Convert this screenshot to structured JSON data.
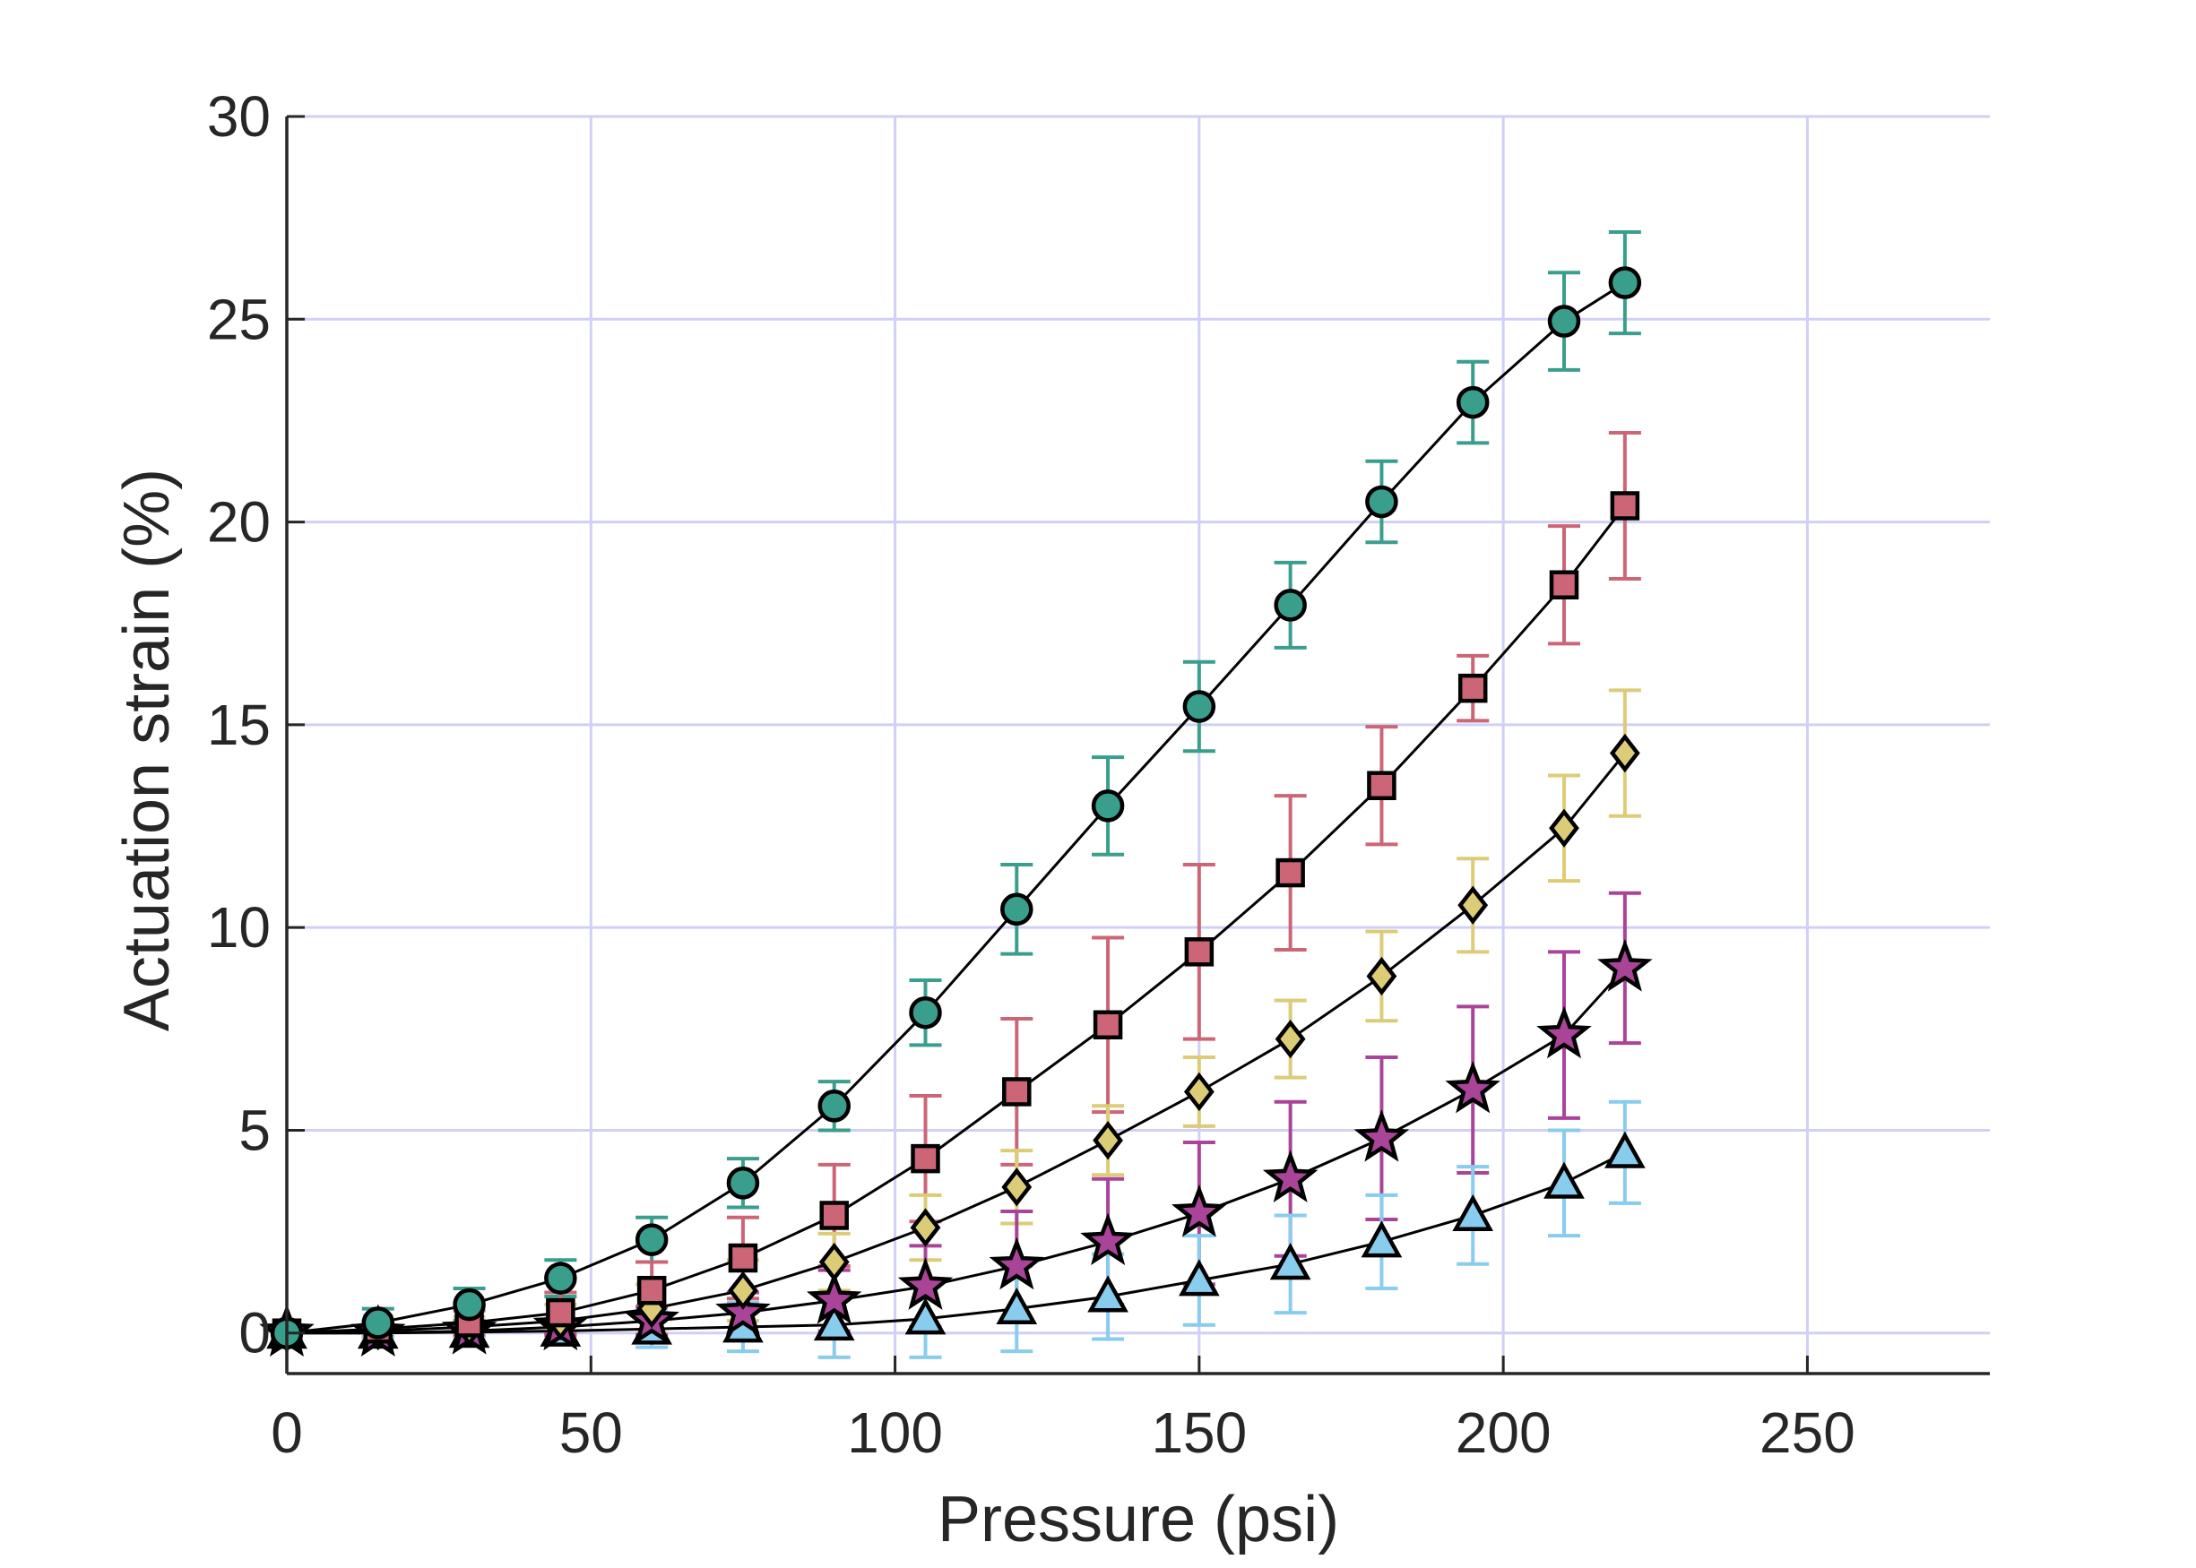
{
  "chart_data": {
    "type": "line",
    "xlabel": "Pressure (psi)",
    "ylabel": "Actuation strain (%)",
    "xlim": [
      0,
      280
    ],
    "ylim": [
      -1,
      30
    ],
    "xticks": [
      0,
      50,
      100,
      150,
      200,
      250
    ],
    "yticks": [
      0,
      5,
      10,
      15,
      20,
      25,
      30
    ],
    "grid": true,
    "grid_color": "#d0d0f5",
    "line_color": "#000000",
    "series": [
      {
        "marker": "circle",
        "color": "#3a9e8c",
        "x": [
          0,
          15,
          30,
          45,
          60,
          75,
          90,
          105,
          120,
          135,
          150,
          165,
          180,
          195,
          210,
          220
        ],
        "y": [
          0,
          0.25,
          0.7,
          1.35,
          2.3,
          3.7,
          5.6,
          7.9,
          10.45,
          13.0,
          15.45,
          17.95,
          20.5,
          22.95,
          24.95,
          25.9
        ],
        "err": [
          0.15,
          0.35,
          0.4,
          0.45,
          0.55,
          0.6,
          0.6,
          0.8,
          1.1,
          1.2,
          1.1,
          1.05,
          1.0,
          1.0,
          1.2,
          1.25
        ]
      },
      {
        "marker": "square",
        "color": "#cc6677",
        "x": [
          0,
          15,
          30,
          45,
          60,
          75,
          90,
          105,
          120,
          135,
          150,
          165,
          180,
          195,
          210,
          220
        ],
        "y": [
          0,
          0.1,
          0.25,
          0.5,
          1.05,
          1.85,
          2.9,
          4.3,
          5.95,
          7.6,
          9.4,
          11.35,
          13.5,
          15.9,
          18.45,
          20.4
        ],
        "err": [
          0.1,
          0.2,
          0.3,
          0.5,
          0.7,
          1.0,
          1.25,
          1.55,
          1.8,
          2.15,
          2.15,
          1.9,
          1.45,
          0.8,
          1.45,
          1.8
        ]
      },
      {
        "marker": "diamond",
        "color": "#ddcc77",
        "x": [
          0,
          15,
          30,
          45,
          60,
          75,
          90,
          105,
          120,
          135,
          150,
          165,
          180,
          195,
          210,
          220
        ],
        "y": [
          0,
          0.05,
          0.15,
          0.3,
          0.6,
          1.05,
          1.75,
          2.6,
          3.6,
          4.75,
          5.95,
          7.25,
          8.8,
          10.55,
          12.45,
          14.3
        ],
        "err": [
          0.1,
          0.15,
          0.25,
          0.4,
          0.6,
          0.75,
          0.7,
          0.8,
          0.9,
          0.85,
          0.85,
          0.95,
          1.1,
          1.15,
          1.3,
          1.55
        ]
      },
      {
        "marker": "star",
        "color": "#aa4499",
        "x": [
          0,
          15,
          30,
          45,
          60,
          75,
          90,
          105,
          120,
          135,
          150,
          165,
          180,
          195,
          210,
          220
        ],
        "y": [
          0,
          0.0,
          0.05,
          0.15,
          0.3,
          0.5,
          0.8,
          1.15,
          1.65,
          2.25,
          2.95,
          3.8,
          4.8,
          6.0,
          7.35,
          9.0
        ],
        "err": [
          0.1,
          0.1,
          0.15,
          0.2,
          0.35,
          0.5,
          0.75,
          1.0,
          1.35,
          1.55,
          1.75,
          1.9,
          2.0,
          2.05,
          2.05,
          1.85
        ]
      },
      {
        "marker": "triangle",
        "color": "#88ccee",
        "x": [
          0,
          15,
          30,
          45,
          60,
          75,
          90,
          105,
          120,
          135,
          150,
          165,
          180,
          195,
          210,
          220
        ],
        "y": [
          0,
          0.0,
          0.02,
          0.05,
          0.1,
          0.15,
          0.2,
          0.35,
          0.6,
          0.9,
          1.3,
          1.7,
          2.25,
          2.9,
          3.7,
          4.45
        ],
        "err": [
          0.1,
          0.1,
          0.15,
          0.3,
          0.45,
          0.6,
          0.8,
          0.95,
          1.05,
          1.05,
          1.1,
          1.2,
          1.15,
          1.2,
          1.3,
          1.25
        ]
      }
    ]
  }
}
